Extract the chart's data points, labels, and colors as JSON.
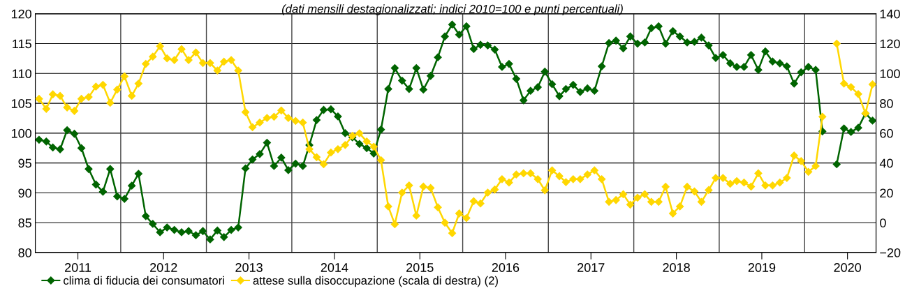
{
  "chart_data": {
    "type": "line",
    "subtitle": "(dati mensili destagionalizzati; indici 2010=100 e punti percentuali)",
    "x": [
      "2011-01",
      "2011-02",
      "2011-03",
      "2011-04",
      "2011-05",
      "2011-06",
      "2011-07",
      "2011-08",
      "2011-09",
      "2011-10",
      "2011-11",
      "2011-12",
      "2012-01",
      "2012-02",
      "2012-03",
      "2012-04",
      "2012-05",
      "2012-06",
      "2012-07",
      "2012-08",
      "2012-09",
      "2012-10",
      "2012-11",
      "2012-12",
      "2013-01",
      "2013-02",
      "2013-03",
      "2013-04",
      "2013-05",
      "2013-06",
      "2013-07",
      "2013-08",
      "2013-09",
      "2013-10",
      "2013-11",
      "2013-12",
      "2014-01",
      "2014-02",
      "2014-03",
      "2014-04",
      "2014-05",
      "2014-06",
      "2014-07",
      "2014-08",
      "2014-09",
      "2014-10",
      "2014-11",
      "2014-12",
      "2015-01",
      "2015-02",
      "2015-03",
      "2015-04",
      "2015-05",
      "2015-06",
      "2015-07",
      "2015-08",
      "2015-09",
      "2015-10",
      "2015-11",
      "2015-12",
      "2016-01",
      "2016-02",
      "2016-03",
      "2016-04",
      "2016-05",
      "2016-06",
      "2016-07",
      "2016-08",
      "2016-09",
      "2016-10",
      "2016-11",
      "2016-12",
      "2017-01",
      "2017-02",
      "2017-03",
      "2017-04",
      "2017-05",
      "2017-06",
      "2017-07",
      "2017-08",
      "2017-09",
      "2017-10",
      "2017-11",
      "2017-12",
      "2018-01",
      "2018-02",
      "2018-03",
      "2018-04",
      "2018-05",
      "2018-06",
      "2018-07",
      "2018-08",
      "2018-09",
      "2018-10",
      "2018-11",
      "2018-12",
      "2019-01",
      "2019-02",
      "2019-03",
      "2019-04",
      "2019-05",
      "2019-06",
      "2019-07",
      "2019-08",
      "2019-09",
      "2019-10",
      "2019-11",
      "2019-12",
      "2020-01",
      "2020-02",
      "2020-03",
      "2020-04",
      "2020-05",
      "2020-06",
      "2020-07",
      "2020-08",
      "2020-09",
      "2020-10"
    ],
    "series": [
      {
        "name": "clima di fiducia dei consumatori",
        "color": "#006400",
        "values": [
          98.9,
          98.6,
          97.6,
          97.3,
          100.5,
          99.9,
          97.5,
          94.0,
          91.4,
          90.2,
          94.0,
          89.4,
          89.0,
          91.2,
          93.2,
          86.1,
          84.8,
          83.4,
          84.2,
          83.8,
          83.4,
          83.6,
          82.9,
          83.6,
          82.2,
          83.7,
          82.6,
          83.8,
          84.2,
          94.1,
          95.6,
          96.5,
          98.4,
          94.5,
          95.9,
          93.8,
          94.9,
          94.5,
          98.0,
          102.2,
          103.9,
          104.0,
          102.8,
          100.0,
          99.3,
          98.2,
          97.5,
          96.6,
          100.6,
          107.4,
          110.9,
          108.8,
          107.4,
          110.9,
          107.3,
          109.6,
          112.7,
          116.2,
          118.2,
          116.5,
          117.9,
          114.1,
          114.8,
          114.7,
          114.0,
          111.1,
          111.6,
          109.1,
          105.5,
          107.1,
          107.7,
          110.3,
          108.2,
          106.2,
          107.4,
          108.1,
          106.9,
          107.5,
          107.1,
          111.2,
          115.1,
          115.5,
          114.2,
          116.2,
          115.0,
          115.2,
          117.6,
          117.9,
          115.0,
          117.1,
          116.2,
          115.2,
          115.3,
          116.0,
          114.7,
          112.6,
          113.1,
          111.7,
          111.1,
          111.1,
          113.1,
          110.6,
          113.7,
          112.0,
          111.7,
          111.2,
          108.3,
          110.2,
          111.1,
          110.6,
          100.3,
          null,
          94.8,
          100.8,
          100.2,
          100.9,
          103.3,
          102.1
        ]
      },
      {
        "name": "attese sulla disoccupazione (scala di destra) (2)",
        "color": "#ffd700",
        "axis": "y2",
        "values": [
          83.0,
          76.3,
          86.0,
          85.0,
          77.2,
          74.9,
          83.0,
          84.2,
          91.2,
          92.4,
          80.3,
          89.2,
          98.1,
          85.0,
          93.2,
          106.4,
          111.3,
          118.3,
          110.1,
          109.0,
          116.3,
          109.0,
          114.1,
          107.0,
          107.0,
          102.0,
          107.9,
          109.0,
          102.0,
          74.1,
          64.0,
          67.1,
          70.2,
          71.0,
          75.2,
          70.2,
          68.2,
          67.1,
          49.3,
          43.9,
          39.2,
          47.0,
          49.3,
          52.1,
          58.2,
          59.9,
          54.4,
          50.9,
          41.9,
          10.9,
          -1.0,
          20.2,
          25.0,
          4.7,
          24.2,
          23.3,
          10.3,
          0.0,
          -7.0,
          6.2,
          3.1,
          14.4,
          12.9,
          20.2,
          22.2,
          29.2,
          26.9,
          32.3,
          33.1,
          33.1,
          29.2,
          21.7,
          35.1,
          31.2,
          27.2,
          29.2,
          29.2,
          32.3,
          35.1,
          29.2,
          14.0,
          15.2,
          19.1,
          12.1,
          16.8,
          19.1,
          14.0,
          14.0,
          24.1,
          6.2,
          10.9,
          24.1,
          21.0,
          14.0,
          21.9,
          30.0,
          30.0,
          26.1,
          27.9,
          26.9,
          24.2,
          33.1,
          25.0,
          25.0,
          26.9,
          30.0,
          45.0,
          41.3,
          34.1,
          38.0,
          71.0,
          null,
          120,
          93.2,
          90.9,
          86.2,
          73.3,
          92.7
        ]
      }
    ],
    "xlim": [
      "2010-12-16",
      "2020-10-16"
    ],
    "xticks": [
      {
        "value": "2011-06-16",
        "label": "2011"
      },
      {
        "value": "2012-06-16",
        "label": "2012"
      },
      {
        "value": "2013-06-16",
        "label": "2013"
      },
      {
        "value": "2014-06-16",
        "label": "2014"
      },
      {
        "value": "2015-06-16",
        "label": "2015"
      },
      {
        "value": "2016-06-16",
        "label": "2016"
      },
      {
        "value": "2017-06-16",
        "label": "2017"
      },
      {
        "value": "2018-06-16",
        "label": "2018"
      },
      {
        "value": "2019-06-16",
        "label": "2019"
      },
      {
        "value": "2020-06-16",
        "label": "2020"
      }
    ],
    "ylim": [
      80,
      120
    ],
    "yticks": [
      80,
      85,
      90,
      95,
      100,
      105,
      110,
      115,
      120
    ],
    "y2lim": [
      -20,
      140
    ],
    "y2ticks": [
      {
        "value": -20,
        "label": "−20"
      },
      0,
      20,
      40,
      60,
      80,
      100,
      120,
      140
    ],
    "ref_lines": [
      {
        "axis": "x",
        "value": "2011-12-16",
        "color": "#444444"
      },
      {
        "axis": "x",
        "value": "2012-12-16",
        "color": "#444444"
      },
      {
        "axis": "x",
        "value": "2013-12-16",
        "color": "#444444"
      },
      {
        "axis": "x",
        "value": "2014-12-16",
        "color": "#444444"
      },
      {
        "axis": "x",
        "value": "2015-12-16",
        "color": "#444444"
      },
      {
        "axis": "x",
        "value": "2016-12-16",
        "color": "#444444"
      },
      {
        "axis": "x",
        "value": "2017-12-16",
        "color": "#444444"
      },
      {
        "axis": "x",
        "value": "2018-12-16",
        "color": "#444444"
      },
      {
        "axis": "x",
        "value": "2019-12-16",
        "color": "#444444"
      }
    ],
    "grid": "y",
    "legend": "bottom left",
    "marker": "diamond",
    "line_style": "solid"
  }
}
